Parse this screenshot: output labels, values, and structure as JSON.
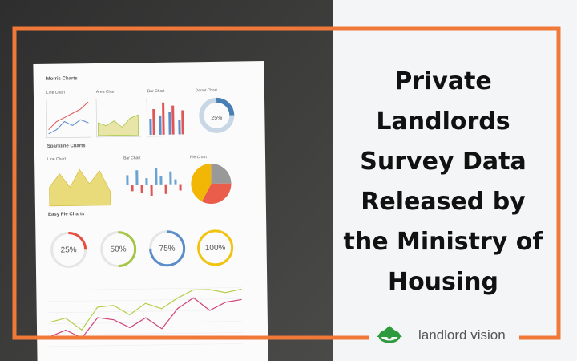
{
  "header": {
    "title_lines": [
      "Private",
      "Landlords",
      "Survey Data",
      "Released by",
      "the Ministry of",
      "Housing"
    ]
  },
  "logo": {
    "text": "landlord vision"
  },
  "paper": {
    "morris": {
      "title": "Morris Charts",
      "labels": [
        "Line Chart",
        "Area Chart",
        "Bar Chart",
        "Donut Chart"
      ],
      "donut_label": "25%"
    },
    "sparkline": {
      "title": "Sparkline Charts",
      "labels": [
        "Line Chart",
        "Bar Chart",
        "Pie Chart"
      ]
    },
    "easy_pie": {
      "title": "Easy Pie Charts",
      "labels": [
        "25%",
        "50%",
        "75%",
        "100%"
      ]
    }
  }
}
